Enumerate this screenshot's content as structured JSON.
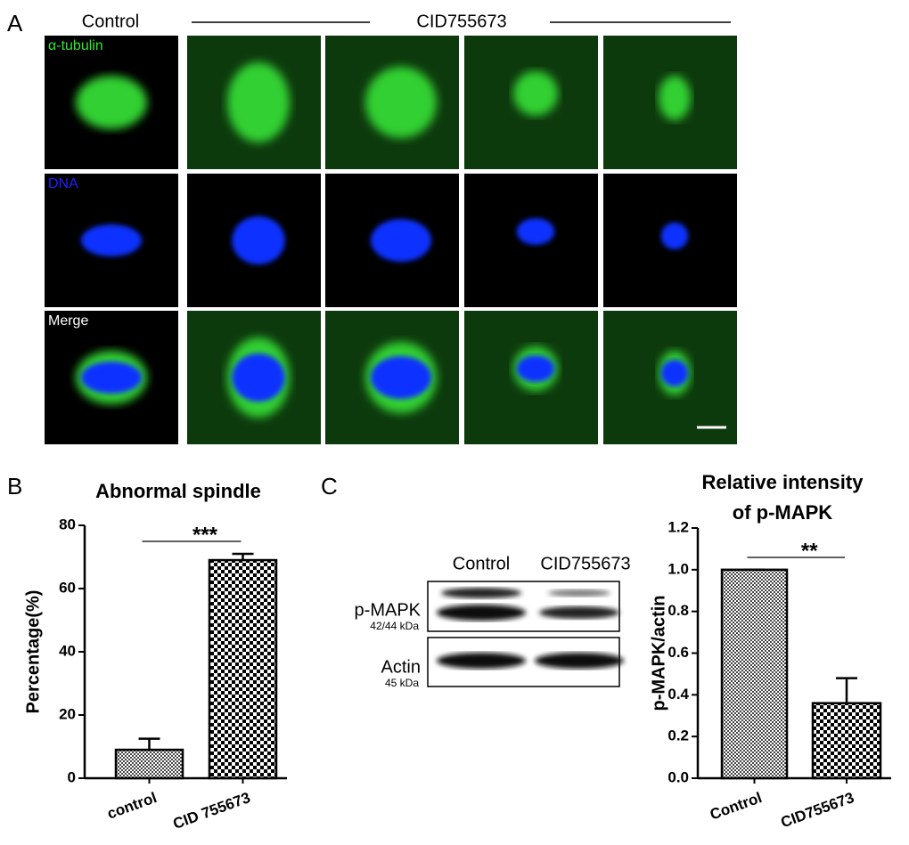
{
  "panel_a": {
    "label": "A",
    "control": "Control",
    "treatment": "CID755673",
    "rows": [
      "α-tubulin",
      "DNA",
      "Merge"
    ]
  },
  "panel_c_blot": {
    "label": "C",
    "lanes": [
      "Control",
      "CID755673"
    ],
    "bands": [
      {
        "name": "p-MAPK",
        "size": "42/44 kDa"
      },
      {
        "name": "Actin",
        "size": "45 kDa"
      }
    ]
  },
  "chart_data": [
    {
      "type": "bar",
      "panel": "B",
      "title": [
        "Abnormal spindle"
      ],
      "y_label": "Percentage(%)",
      "categories": [
        "control",
        "CID 755673"
      ],
      "values": [
        9,
        69
      ],
      "errors": [
        3.5,
        2
      ],
      "ylim": [
        0,
        80
      ],
      "yticks": [
        0,
        20,
        40,
        60,
        80
      ],
      "significance": "***"
    },
    {
      "type": "bar",
      "title": [
        "Relative  intensity",
        "of p-MAPK"
      ],
      "y_label": "p-MAPK/actin",
      "categories": [
        "Control",
        "CID755673"
      ],
      "values": [
        1.0,
        0.36
      ],
      "errors": [
        0,
        0.12
      ],
      "ylim": [
        0,
        1.2
      ],
      "yticks": [
        {
          "value": 0,
          "label": "0.0"
        },
        0.2,
        0.4,
        0.6,
        0.8,
        {
          "value": 1,
          "label": "1.0"
        },
        1.2
      ],
      "significance": "**"
    }
  ]
}
